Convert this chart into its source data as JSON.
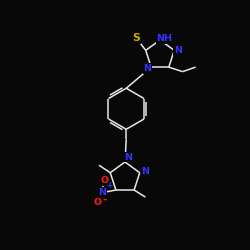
{
  "background_color": "#080808",
  "bond_color": "#e8e8e8",
  "atom_colors": {
    "S": "#ccaa00",
    "N": "#3333ff",
    "O": "#ff1a1a",
    "C": "#e8e8e8",
    "H": "#e8e8e8"
  },
  "lw": 1.1,
  "fontsize": 6.8
}
